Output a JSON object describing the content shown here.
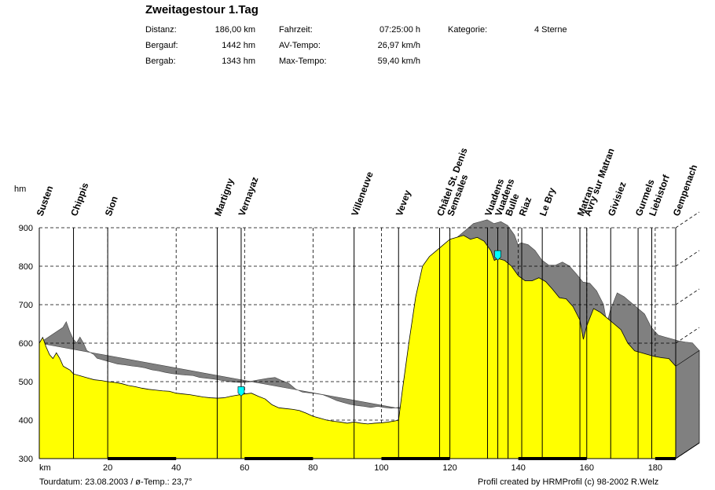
{
  "title": "Zweitagestour 1.Tag",
  "stats": [
    {
      "label": "Distanz:",
      "value": "186,00 km"
    },
    {
      "label": "Bergauf:",
      "value": "1442 hm"
    },
    {
      "label": "Bergab:",
      "value": "1343 hm"
    },
    {
      "label": "Fahrzeit:",
      "value": "07:25:00 h"
    },
    {
      "label": "AV-Tempo:",
      "value": "26,97 km/h"
    },
    {
      "label": "Max-Tempo:",
      "value": "59,40 km/h"
    },
    {
      "label": "Kategorie:",
      "value": "4 Sterne"
    }
  ],
  "footer": {
    "left": "Tourdatum: 23.08.2003  /  ø-Temp.: 23,7°",
    "right": "Profil created by HRMProfil (c) 98-2002 R.Welz"
  },
  "colors": {
    "profile_fill": "#ffff00",
    "shadow": "#808080",
    "marker": "#00ffff",
    "axis_bar": "#000000"
  },
  "chart_data": {
    "type": "area",
    "title": "Zweitagestour 1.Tag",
    "xlabel": "km",
    "ylabel": "hm",
    "xlim": [
      0,
      186
    ],
    "ylim": [
      300,
      900
    ],
    "xticks": [
      20,
      40,
      60,
      80,
      100,
      120,
      140,
      160,
      180
    ],
    "yticks": [
      300,
      400,
      500,
      600,
      700,
      800,
      900
    ],
    "grid": true,
    "x": [
      0,
      1,
      2,
      3,
      4,
      5,
      6,
      7,
      8,
      9,
      10,
      12,
      14,
      16,
      18,
      20,
      22,
      24,
      26,
      28,
      30,
      32,
      34,
      36,
      38,
      40,
      42,
      44,
      46,
      48,
      50,
      52,
      54,
      56,
      58,
      60,
      62,
      64,
      66,
      68,
      70,
      72,
      74,
      76,
      78,
      80,
      82,
      84,
      86,
      88,
      90,
      92,
      94,
      96,
      98,
      100,
      102,
      104,
      105,
      106,
      108,
      110,
      112,
      114,
      116,
      118,
      120,
      122,
      124,
      126,
      128,
      130,
      132,
      133,
      134,
      136,
      138,
      140,
      142,
      144,
      146,
      148,
      150,
      152,
      154,
      156,
      158,
      159,
      160,
      162,
      164,
      166,
      168,
      170,
      172,
      174,
      176,
      178,
      180,
      182,
      184,
      186
    ],
    "y": [
      600,
      615,
      590,
      570,
      560,
      575,
      560,
      540,
      535,
      530,
      520,
      515,
      510,
      505,
      503,
      500,
      498,
      495,
      490,
      487,
      483,
      480,
      478,
      476,
      475,
      470,
      468,
      466,
      463,
      460,
      458,
      457,
      458,
      462,
      465,
      468,
      470,
      462,
      455,
      440,
      432,
      430,
      428,
      425,
      418,
      410,
      405,
      400,
      397,
      395,
      392,
      395,
      392,
      390,
      392,
      393,
      395,
      398,
      400,
      470,
      600,
      720,
      800,
      825,
      840,
      855,
      870,
      875,
      880,
      870,
      875,
      865,
      840,
      815,
      820,
      815,
      800,
      775,
      762,
      762,
      770,
      760,
      740,
      718,
      715,
      695,
      660,
      610,
      645,
      690,
      680,
      665,
      650,
      635,
      600,
      580,
      575,
      570,
      565,
      562,
      560,
      540
    ],
    "waypoints": [
      {
        "name": "Susten",
        "km": 0
      },
      {
        "name": "Chippis",
        "km": 10
      },
      {
        "name": "Sion",
        "km": 20
      },
      {
        "name": "Martigny",
        "km": 52
      },
      {
        "name": "Vernayaz",
        "km": 59
      },
      {
        "name": "Villeneuve",
        "km": 92
      },
      {
        "name": "Vevey",
        "km": 105
      },
      {
        "name": "Châtel St. Denis",
        "km": 117
      },
      {
        "name": "Semsales",
        "km": 120
      },
      {
        "name": "Vuadens",
        "km": 131
      },
      {
        "name": "Vuadens",
        "km": 134
      },
      {
        "name": "Bulle",
        "km": 137
      },
      {
        "name": "Riaz",
        "km": 141
      },
      {
        "name": "Le Bry",
        "km": 147
      },
      {
        "name": "Matran",
        "km": 158
      },
      {
        "name": "Avry sur Matran",
        "km": 160
      },
      {
        "name": "Givisiez",
        "km": 167
      },
      {
        "name": "Gurmels",
        "km": 175
      },
      {
        "name": "Liebistorf",
        "km": 179
      },
      {
        "name": "Gempenach",
        "km": 186
      }
    ],
    "markers_km": [
      59,
      134
    ]
  }
}
